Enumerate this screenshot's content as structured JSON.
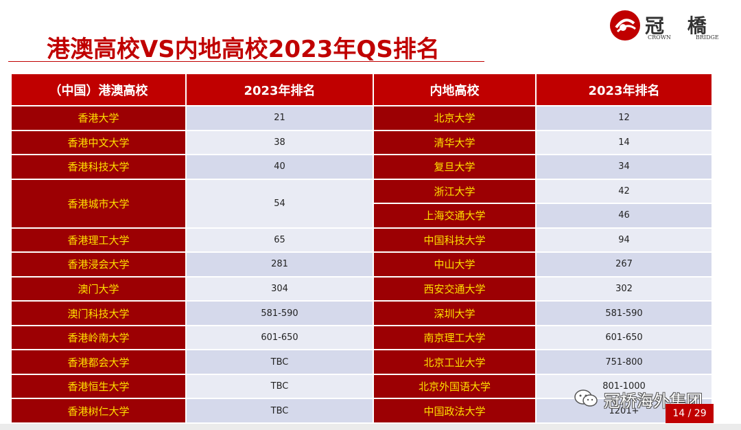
{
  "header": {
    "title": "港澳高校VS内地高校2023年QS排名",
    "logo": {
      "cn": "冠 橋",
      "en_left": "CROWN",
      "en_right": "BRIDGE",
      "brand_color": "#c00000"
    }
  },
  "table": {
    "headers": [
      "（中国）港澳高校",
      "2023年排名",
      "内地高校",
      "2023年排名"
    ],
    "rows": [
      {
        "hk": "香港大学",
        "hk_rank": "21",
        "ml": "北京大学",
        "ml_rank": "12"
      },
      {
        "hk": "香港中文大学",
        "hk_rank": "38",
        "ml": "清华大学",
        "ml_rank": "14"
      },
      {
        "hk": "香港科技大学",
        "hk_rank": "40",
        "ml": "复旦大学",
        "ml_rank": "34"
      },
      {
        "hk": "香港城市大学",
        "hk_rank": "54",
        "ml": "浙江大学",
        "ml_rank": "42"
      },
      {
        "ml": "上海交通大学",
        "ml_rank": "46"
      },
      {
        "hk": "香港理工大学",
        "hk_rank": "65",
        "ml": "中国科技大学",
        "ml_rank": "94"
      },
      {
        "hk": "香港浸会大学",
        "hk_rank": "281",
        "ml": "中山大学",
        "ml_rank": "267"
      },
      {
        "hk": "澳门大学",
        "hk_rank": "304",
        "ml": "西安交通大学",
        "ml_rank": "302"
      },
      {
        "hk": "澳门科技大学",
        "hk_rank": "581-590",
        "ml": "深圳大学",
        "ml_rank": "581-590"
      },
      {
        "hk": "香港岭南大学",
        "hk_rank": "601-650",
        "ml": "南京理工大学",
        "ml_rank": "601-650"
      },
      {
        "hk": "香港都会大学",
        "hk_rank": "TBC",
        "ml": "北京工业大学",
        "ml_rank": "751-800"
      },
      {
        "hk": "香港恒生大学",
        "hk_rank": "TBC",
        "ml": "北京外国语大学",
        "ml_rank": "801-1000"
      },
      {
        "hk": "香港树仁大学",
        "hk_rank": "TBC",
        "ml": "中国政法大学",
        "ml_rank": "1201+"
      }
    ],
    "colors": {
      "header_bg": "#c00000",
      "name_bg": "#9c0003",
      "name_text": "#ffe100",
      "rank_bg": "#d5d9eb"
    }
  },
  "watermark": {
    "icon": "wechat-icon",
    "text": "冠桥海外集团"
  },
  "footer": {
    "page": "14 / 29"
  }
}
